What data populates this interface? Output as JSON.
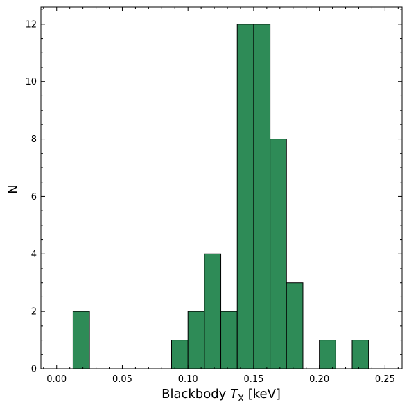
{
  "chart_data": {
    "type": "bar",
    "xlabel": "Blackbody",
    "xlabel_symbol": "T",
    "xlabel_subscript": "X",
    "xlabel_unit": "[keV]",
    "ylabel": "N",
    "xlim": [
      -0.012,
      0.263
    ],
    "ylim": [
      0,
      12.6
    ],
    "x_ticks": [
      0.0,
      0.05,
      0.1,
      0.15,
      0.2,
      0.25
    ],
    "x_tick_labels": [
      "0.00",
      "0.05",
      "0.10",
      "0.15",
      "0.20",
      "0.25"
    ],
    "x_minor_step": 0.01,
    "y_ticks": [
      0,
      2,
      4,
      6,
      8,
      10,
      12
    ],
    "y_tick_labels": [
      "0",
      "2",
      "4",
      "6",
      "8",
      "10",
      "12"
    ],
    "y_minor_step": 0.5,
    "bin_edges": [
      0.0125,
      0.025,
      0.0375,
      0.05,
      0.0625,
      0.075,
      0.0875,
      0.1,
      0.1125,
      0.125,
      0.1375,
      0.15,
      0.1625,
      0.175,
      0.1875,
      0.2,
      0.2125,
      0.225,
      0.2375
    ],
    "counts": [
      2,
      0,
      0,
      0,
      0,
      0,
      1,
      2,
      4,
      2,
      12,
      12,
      8,
      3,
      0,
      1,
      0,
      1
    ],
    "bar_color": "#2e8b57",
    "edge_color": "#000000",
    "grid": false,
    "ticks_direction": "in"
  }
}
